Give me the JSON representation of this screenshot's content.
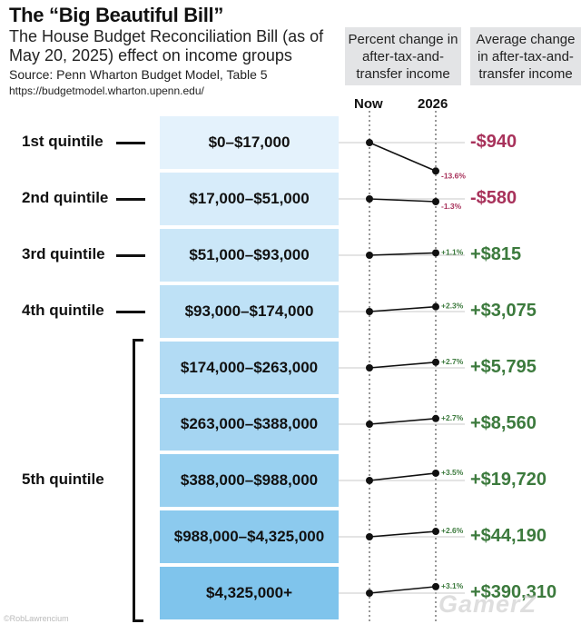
{
  "title": "The “Big Beautiful Bill”",
  "subtitle": "The House Budget Reconciliation Bill (as of May 20, 2025) effect on income groups",
  "source": "Source: Penn Wharton Budget Model, Table 5",
  "url": "https://budgetmodel.wharton.upenn.edu/",
  "headers": {
    "pct_change": "Percent change in after-tax-and-transfer income",
    "avg_change": "Average change in after-tax-and-transfer income"
  },
  "columns": {
    "now": "Now",
    "future": "2026"
  },
  "quintiles": [
    {
      "label": "1st quintile"
    },
    {
      "label": "2nd quintile"
    },
    {
      "label": "3rd quintile"
    },
    {
      "label": "4th quintile"
    },
    {
      "label": "5th quintile"
    }
  ],
  "colors": {
    "negative": "#a8325b",
    "positive": "#3c7a3d",
    "box_light": "#e4f2fc",
    "box_dark": "#7fc4ec"
  },
  "chart_data": {
    "type": "line",
    "x": [
      "Now",
      "2026"
    ],
    "rows": [
      {
        "group": "$0–$17,000",
        "pct_change": -13.6,
        "pct_label": "-13.6%",
        "avg_change": -940,
        "avg_label": "-$940"
      },
      {
        "group": "$17,000–$51,000",
        "pct_change": -1.3,
        "pct_label": "-1.3%",
        "avg_change": -580,
        "avg_label": "-$580"
      },
      {
        "group": "$51,000–$93,000",
        "pct_change": 1.1,
        "pct_label": "+1.1%",
        "avg_change": 815,
        "avg_label": "+$815"
      },
      {
        "group": "$93,000–$174,000",
        "pct_change": 2.3,
        "pct_label": "+2.3%",
        "avg_change": 3075,
        "avg_label": "+$3,075"
      },
      {
        "group": "$174,000–$263,000",
        "pct_change": 2.7,
        "pct_label": "+2.7%",
        "avg_change": 5795,
        "avg_label": "+$5,795"
      },
      {
        "group": "$263,000–$388,000",
        "pct_change": 2.7,
        "pct_label": "+2.7%",
        "avg_change": 8560,
        "avg_label": "+$8,560"
      },
      {
        "group": "$388,000–$988,000",
        "pct_change": 3.5,
        "pct_label": "+3.5%",
        "avg_change": 19720,
        "avg_label": "+$19,720"
      },
      {
        "group": "$988,000–$4,325,000",
        "pct_change": 2.6,
        "pct_label": "+2.6%",
        "avg_change": 44190,
        "avg_label": "+$44,190"
      },
      {
        "group": "$4,325,000+",
        "pct_change": 3.1,
        "pct_label": "+3.1%",
        "avg_change": 390310,
        "avg_label": "+$390,310"
      }
    ]
  },
  "credit": "©RobLawrencium",
  "watermark": "GamerZ"
}
